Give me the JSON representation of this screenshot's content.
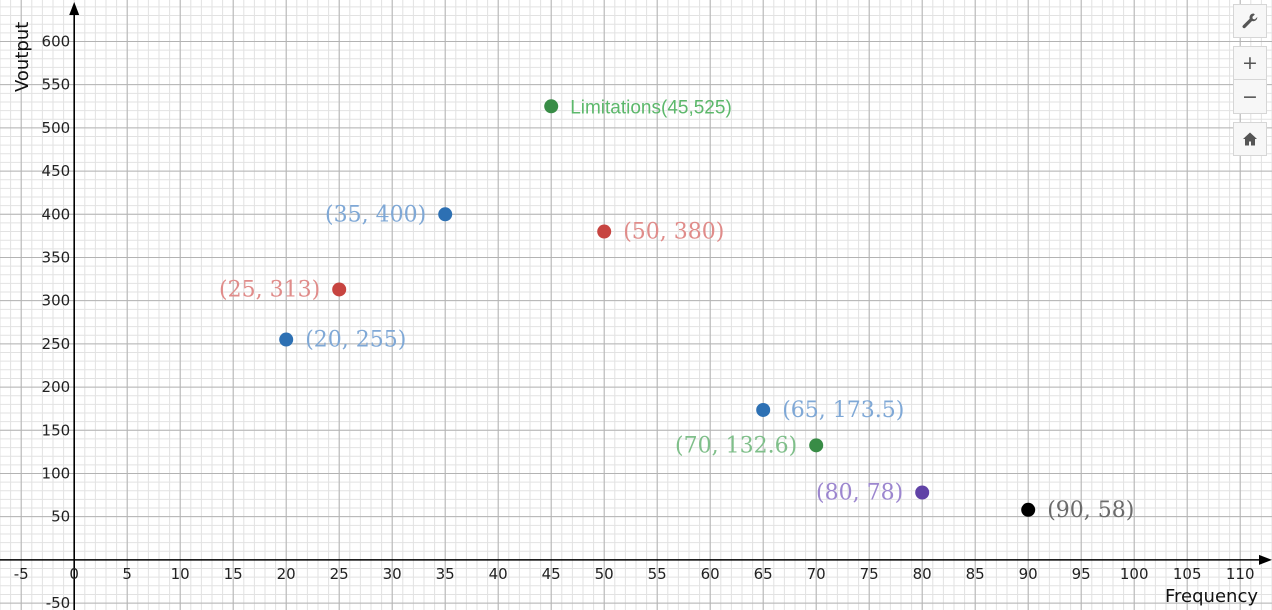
{
  "chart_data": {
    "type": "scatter",
    "xlabel": "Frequency",
    "ylabel": "Voutput",
    "xlim": [
      -7,
      113
    ],
    "ylim": [
      -58,
      648
    ],
    "x_ticks": [
      -5,
      0,
      5,
      10,
      15,
      20,
      25,
      30,
      35,
      40,
      45,
      50,
      55,
      60,
      65,
      70,
      75,
      80,
      85,
      90,
      95,
      100,
      105,
      110
    ],
    "y_ticks": [
      -50,
      50,
      100,
      150,
      200,
      250,
      300,
      350,
      400,
      450,
      500,
      550,
      600
    ],
    "grid": true,
    "points": [
      {
        "x": 20,
        "y": 255,
        "label": "(20, 255)",
        "color": "#2d70b3",
        "label_color": "#7fa8d6",
        "label_pos": "right"
      },
      {
        "x": 25,
        "y": 313,
        "label": "(25, 313)",
        "color": "#c74440",
        "label_color": "#e08c8a",
        "label_pos": "left"
      },
      {
        "x": 35,
        "y": 400,
        "label": "(35, 400)",
        "color": "#2d70b3",
        "label_color": "#7fa8d6",
        "label_pos": "left"
      },
      {
        "x": 45,
        "y": 525,
        "label": "Limitations(45,525)",
        "color": "#388c46",
        "label_color": "#5cb86b",
        "label_pos": "right",
        "label_font": "sans"
      },
      {
        "x": 50,
        "y": 380,
        "label": "(50, 380)",
        "color": "#c74440",
        "label_color": "#e08c8a",
        "label_pos": "right"
      },
      {
        "x": 65,
        "y": 173.5,
        "label": "(65, 173.5)",
        "color": "#2d70b3",
        "label_color": "#7fa8d6",
        "label_pos": "right"
      },
      {
        "x": 70,
        "y": 132.6,
        "label": "(70, 132.6)",
        "color": "#388c46",
        "label_color": "#7fbf8a",
        "label_pos": "left"
      },
      {
        "x": 80,
        "y": 78,
        "label": "(80, 78)",
        "color": "#6042a6",
        "label_color": "#9c86cf",
        "label_pos": "left"
      },
      {
        "x": 90,
        "y": 58,
        "label": "(90, 58)",
        "color": "#000000",
        "label_color": "#6b6b6b",
        "label_pos": "right"
      }
    ]
  },
  "toolbar": {
    "wrench_icon": "wrench-icon",
    "zoom_in_label": "+",
    "zoom_out_label": "−",
    "home_icon": "home-icon"
  }
}
